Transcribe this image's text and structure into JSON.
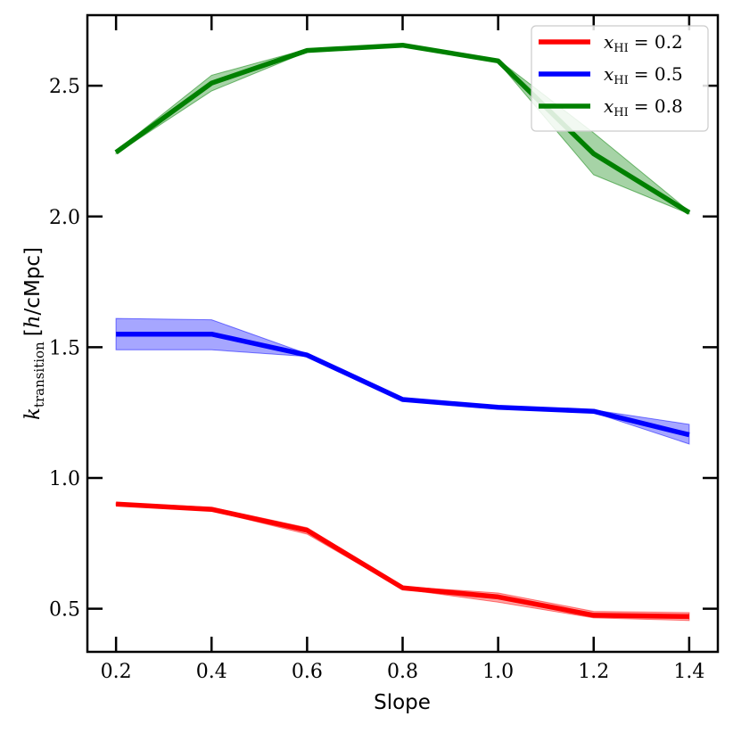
{
  "chart_data": {
    "type": "line",
    "title": "",
    "xlabel": "Slope",
    "ylabel": {
      "symbol": "k",
      "subscript": "transition",
      "unit_left": "[",
      "unit_var": "h",
      "unit_rest": "/cMpc]"
    },
    "xlim": [
      0.14,
      1.46
    ],
    "ylim": [
      0.335,
      2.77
    ],
    "xticks": [
      0.2,
      0.4,
      0.6,
      0.8,
      1.0,
      1.2,
      1.4
    ],
    "xtick_labels": [
      "0.2",
      "0.4",
      "0.6",
      "0.8",
      "1.0",
      "1.2",
      "1.4"
    ],
    "yticks": [
      0.5,
      1.0,
      1.5,
      2.0,
      2.5
    ],
    "ytick_labels": [
      "0.5",
      "1.0",
      "1.5",
      "2.0",
      "2.5"
    ],
    "legend_position": "top-right",
    "x": [
      0.2,
      0.4,
      0.6,
      0.8,
      1.0,
      1.2,
      1.4
    ],
    "series": [
      {
        "name": "x_HI = 0.2",
        "legend_var": "x",
        "legend_sub": "HI",
        "legend_value": "= 0.2",
        "color": "#ff0000",
        "values": [
          0.9,
          0.88,
          0.8,
          0.58,
          0.545,
          0.475,
          0.47
        ],
        "lower": [
          0.895,
          0.875,
          0.785,
          0.575,
          0.525,
          0.465,
          0.455
        ],
        "upper": [
          0.905,
          0.888,
          0.81,
          0.585,
          0.56,
          0.49,
          0.485
        ]
      },
      {
        "name": "x_HI = 0.5",
        "legend_var": "x",
        "legend_sub": "HI",
        "legend_value": "= 0.5",
        "color": "#0000ff",
        "values": [
          1.55,
          1.55,
          1.47,
          1.3,
          1.27,
          1.255,
          1.165
        ],
        "lower": [
          1.49,
          1.49,
          1.465,
          1.295,
          1.265,
          1.25,
          1.13
        ],
        "upper": [
          1.61,
          1.605,
          1.475,
          1.305,
          1.275,
          1.26,
          1.205
        ]
      },
      {
        "name": "x_HI = 0.8",
        "legend_var": "x",
        "legend_sub": "HI",
        "legend_value": "= 0.8",
        "color": "#008000",
        "values": [
          2.245,
          2.51,
          2.635,
          2.655,
          2.595,
          2.24,
          2.015
        ],
        "lower": [
          2.24,
          2.48,
          2.63,
          2.65,
          2.59,
          2.16,
          2.01
        ],
        "upper": [
          2.25,
          2.54,
          2.64,
          2.66,
          2.6,
          2.32,
          2.02
        ]
      }
    ]
  }
}
